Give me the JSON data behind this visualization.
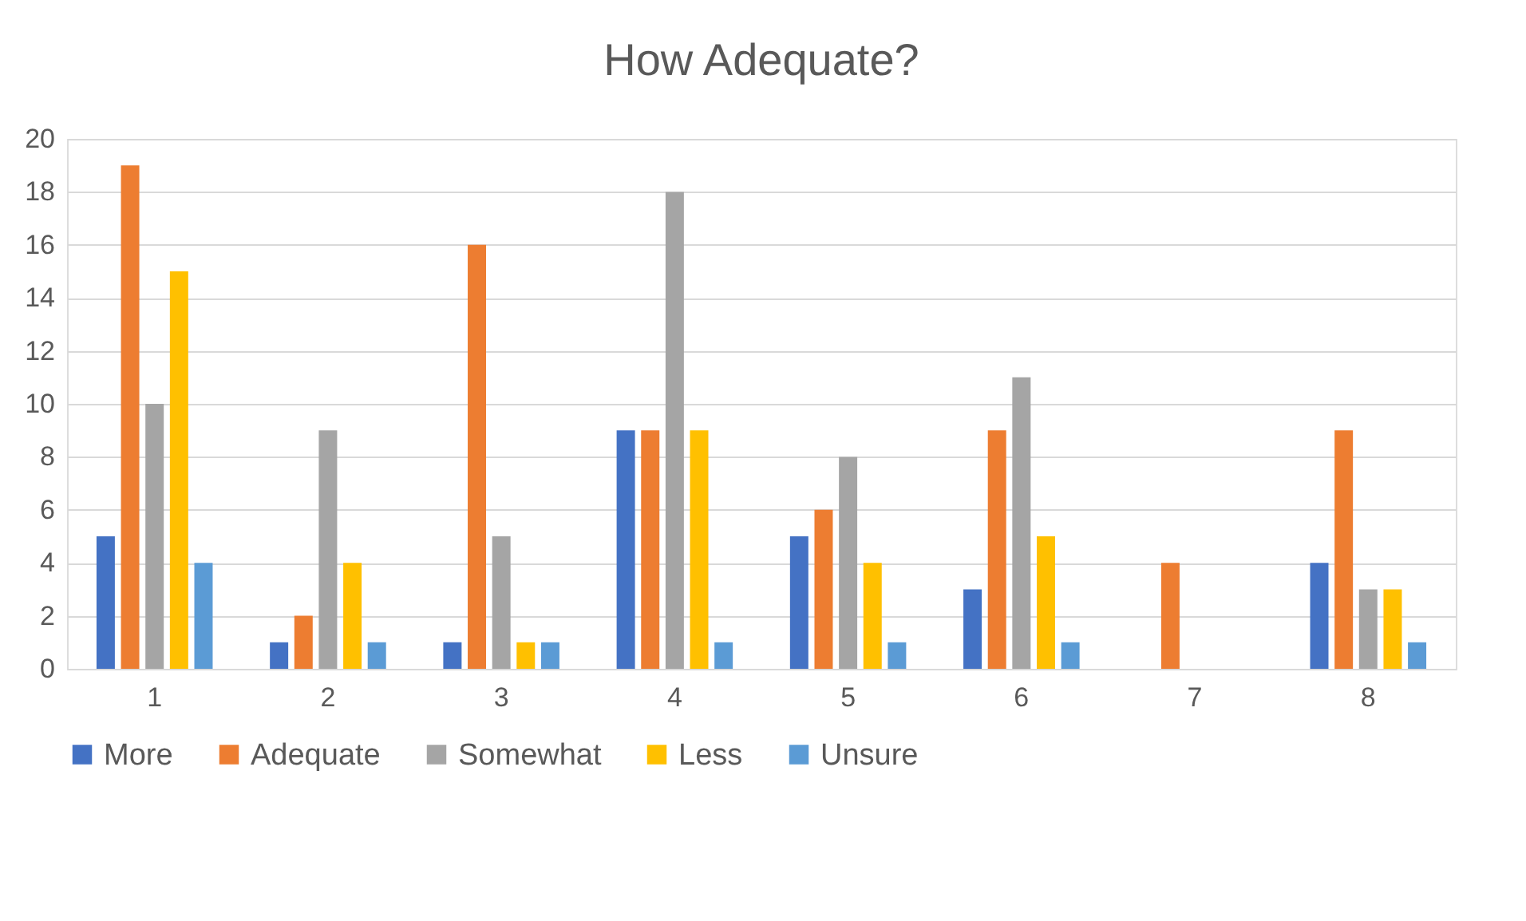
{
  "chart_data": {
    "type": "bar",
    "title": "How Adequate?",
    "categories": [
      "1",
      "2",
      "3",
      "4",
      "5",
      "6",
      "7",
      "8"
    ],
    "series": [
      {
        "name": "More",
        "color": "#4472c4",
        "values": [
          5,
          1,
          1,
          9,
          5,
          3,
          0,
          4
        ]
      },
      {
        "name": "Adequate",
        "color": "#ed7d31",
        "values": [
          19,
          2,
          16,
          9,
          6,
          9,
          4,
          9
        ]
      },
      {
        "name": "Somewhat",
        "color": "#a5a5a5",
        "values": [
          10,
          9,
          5,
          18,
          8,
          11,
          0,
          3
        ]
      },
      {
        "name": "Less",
        "color": "#ffc000",
        "values": [
          15,
          4,
          1,
          9,
          4,
          5,
          0,
          3
        ]
      },
      {
        "name": "Unsure",
        "color": "#5b9bd5",
        "values": [
          4,
          1,
          1,
          1,
          1,
          1,
          0,
          1
        ]
      }
    ],
    "ylim": [
      0,
      20
    ],
    "yticks": [
      0,
      2,
      4,
      6,
      8,
      10,
      12,
      14,
      16,
      18,
      20
    ],
    "grid": "y",
    "legend": "bottom"
  }
}
